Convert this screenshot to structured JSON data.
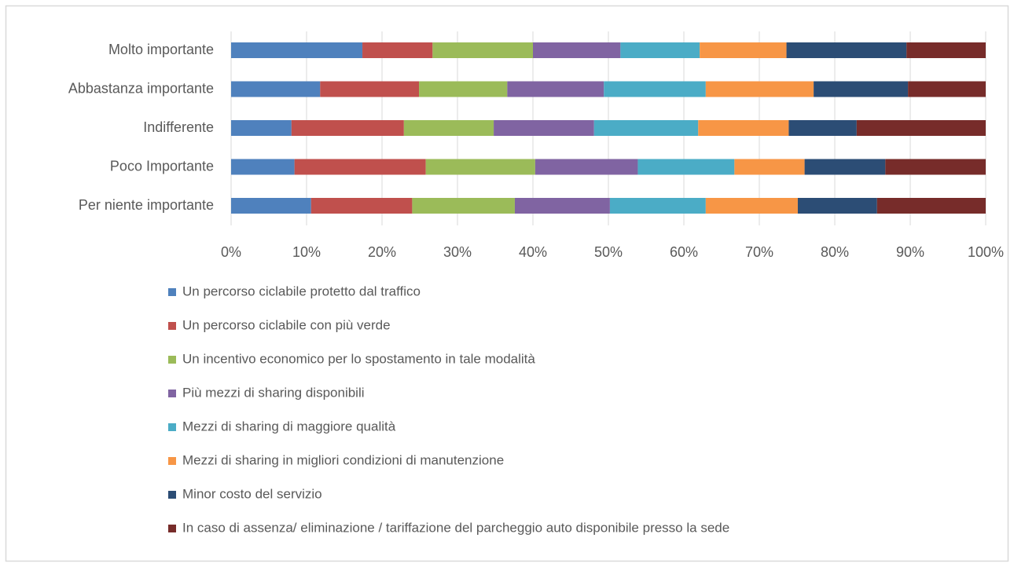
{
  "chart_data": {
    "type": "stacked-barh",
    "categories": [
      "Molto importante",
      "Abbastanza importante",
      "Indifferente",
      "Poco Importante",
      "Per niente importante"
    ],
    "series": [
      {
        "name": "Un percorso ciclabile protetto dal traffico",
        "color": "#4f81bd",
        "values": [
          17.4,
          11.8,
          8.0,
          8.4,
          10.6
        ]
      },
      {
        "name": "Un percorso ciclabile con più verde",
        "color": "#c0504d",
        "values": [
          9.3,
          13.1,
          14.9,
          17.4,
          13.4
        ]
      },
      {
        "name": "Un incentivo economico per lo spostamento in tale modalità",
        "color": "#9bbb59",
        "values": [
          13.3,
          11.7,
          11.9,
          14.5,
          13.6
        ]
      },
      {
        "name": "Più mezzi di sharing disponibili",
        "color": "#8064a2",
        "values": [
          11.6,
          12.8,
          13.3,
          13.6,
          12.6
        ]
      },
      {
        "name": "Mezzi di sharing di maggiore qualità",
        "color": "#4bacc6",
        "values": [
          10.5,
          13.5,
          13.8,
          12.8,
          12.7
        ]
      },
      {
        "name": "Mezzi di sharing in migliori condizioni di manutenzione",
        "color": "#f79646",
        "values": [
          11.5,
          14.3,
          12.0,
          9.3,
          12.2
        ]
      },
      {
        "name": "Minor costo del servizio",
        "color": "#2c4d75",
        "values": [
          15.9,
          12.5,
          9.0,
          10.7,
          10.5
        ]
      },
      {
        "name": "In caso di assenza/ eliminazione / tariffazione del parcheggio auto disponibile presso la sede",
        "color": "#772c2a",
        "values": [
          10.5,
          10.3,
          17.1,
          13.3,
          14.4
        ]
      }
    ],
    "xlim": [
      0,
      100
    ],
    "xticks": [
      {
        "value": 0,
        "label": "0%"
      },
      {
        "value": 10,
        "label": "10%"
      },
      {
        "value": 20,
        "label": "20%"
      },
      {
        "value": 30,
        "label": "30%"
      },
      {
        "value": 40,
        "label": "40%"
      },
      {
        "value": 50,
        "label": "50%"
      },
      {
        "value": 60,
        "label": "60%"
      },
      {
        "value": 70,
        "label": "70%"
      },
      {
        "value": 80,
        "label": "80%"
      },
      {
        "value": 90,
        "label": "90%"
      },
      {
        "value": 100,
        "label": "100%"
      }
    ],
    "grid": true,
    "legend": "bottom"
  }
}
